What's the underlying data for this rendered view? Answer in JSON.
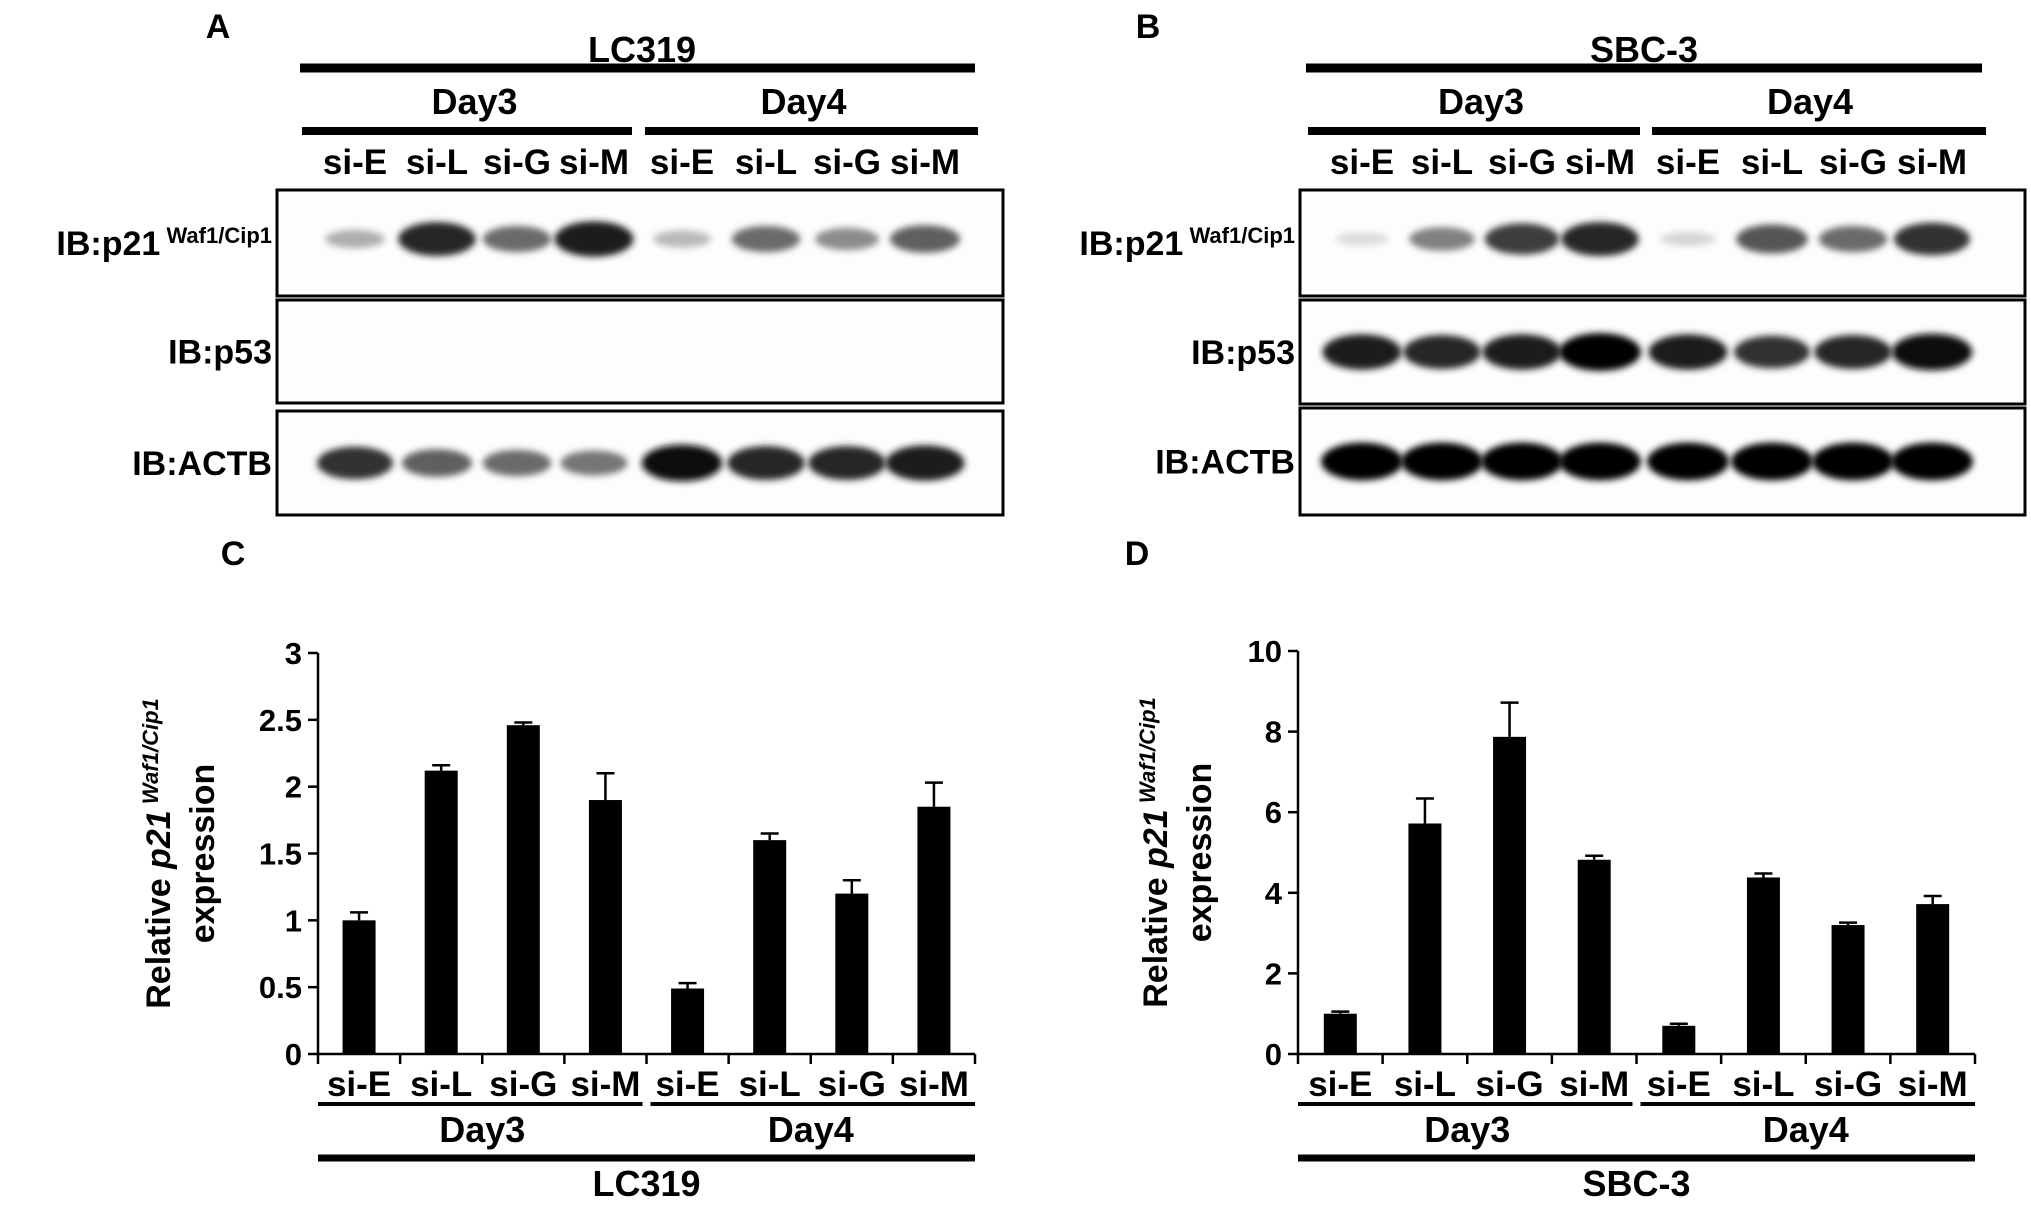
{
  "panels": {
    "A": {
      "letter": "A",
      "cell_line": "LC319",
      "days": [
        "Day3",
        "Day4"
      ],
      "lanes": [
        "si-E",
        "si-L",
        "si-G",
        "si-M",
        "si-E",
        "si-L",
        "si-G",
        "si-M"
      ],
      "blots": [
        {
          "label_main": "IB:p21",
          "label_sup": "Waf1/Cip1",
          "intensity": [
            0.25,
            0.85,
            0.55,
            0.9,
            0.2,
            0.55,
            0.4,
            0.6
          ]
        },
        {
          "label_main": "IB:p53",
          "label_sup": "",
          "intensity": [
            0,
            0,
            0,
            0,
            0,
            0,
            0,
            0
          ]
        },
        {
          "label_main": "IB:ACTB",
          "label_sup": "",
          "intensity": [
            0.8,
            0.6,
            0.55,
            0.5,
            0.95,
            0.85,
            0.85,
            0.9
          ]
        }
      ]
    },
    "B": {
      "letter": "B",
      "cell_line": "SBC-3",
      "days": [
        "Day3",
        "Day4"
      ],
      "lanes": [
        "si-E",
        "si-L",
        "si-G",
        "si-M",
        "si-E",
        "si-L",
        "si-G",
        "si-M"
      ],
      "blots": [
        {
          "label_main": "IB:p21",
          "label_sup": "Waf1/Cip1",
          "intensity": [
            0.05,
            0.45,
            0.75,
            0.85,
            0.08,
            0.65,
            0.55,
            0.8
          ]
        },
        {
          "label_main": "IB:p53",
          "label_sup": "",
          "intensity": [
            0.9,
            0.85,
            0.9,
            1.0,
            0.9,
            0.8,
            0.85,
            0.95
          ]
        },
        {
          "label_main": "IB:ACTB",
          "label_sup": "",
          "intensity": [
            1,
            1,
            1,
            1,
            1,
            1,
            1,
            1
          ]
        }
      ]
    },
    "C": {
      "letter": "C"
    },
    "D": {
      "letter": "D"
    }
  },
  "chart_data": [
    {
      "type": "bar",
      "panel": "C",
      "categories": [
        "si-E",
        "si-L",
        "si-G",
        "si-M",
        "si-E",
        "si-L",
        "si-G",
        "si-M"
      ],
      "groups": [
        "Day3",
        "Day4"
      ],
      "group_caption": "LC319",
      "values": [
        1.0,
        2.12,
        2.46,
        1.9,
        0.49,
        1.6,
        1.2,
        1.85
      ],
      "errors": [
        0.06,
        0.04,
        0.02,
        0.2,
        0.04,
        0.05,
        0.1,
        0.18
      ],
      "ylabel_pre": "Relative ",
      "ylabel_gene": "p21",
      "ylabel_sup": "Waf1/Cip1",
      "ylabel_line2": "expression",
      "ylim": [
        0,
        3
      ],
      "yticks": [
        0,
        0.5,
        1,
        1.5,
        2,
        2.5,
        3
      ],
      "ytick_labels": [
        "0",
        "0.5",
        "1",
        "1.5",
        "2",
        "2.5",
        "3"
      ],
      "bar_color": "#000000"
    },
    {
      "type": "bar",
      "panel": "D",
      "categories": [
        "si-E",
        "si-L",
        "si-G",
        "si-M",
        "si-E",
        "si-L",
        "si-G",
        "si-M"
      ],
      "groups": [
        "Day3",
        "Day4"
      ],
      "group_caption": "SBC-3",
      "values": [
        1.0,
        5.72,
        7.87,
        4.82,
        0.7,
        4.38,
        3.2,
        3.72
      ],
      "errors": [
        0.05,
        0.62,
        0.85,
        0.1,
        0.05,
        0.1,
        0.06,
        0.2
      ],
      "ylabel_pre": "Relative ",
      "ylabel_gene": "p21",
      "ylabel_sup": "Waf1/Cip1",
      "ylabel_line2": "expression",
      "ylim": [
        0,
        10
      ],
      "yticks": [
        0,
        2,
        4,
        6,
        8,
        10
      ],
      "ytick_labels": [
        "0",
        "2",
        "4",
        "6",
        "8",
        "10"
      ],
      "bar_color": "#000000"
    }
  ]
}
